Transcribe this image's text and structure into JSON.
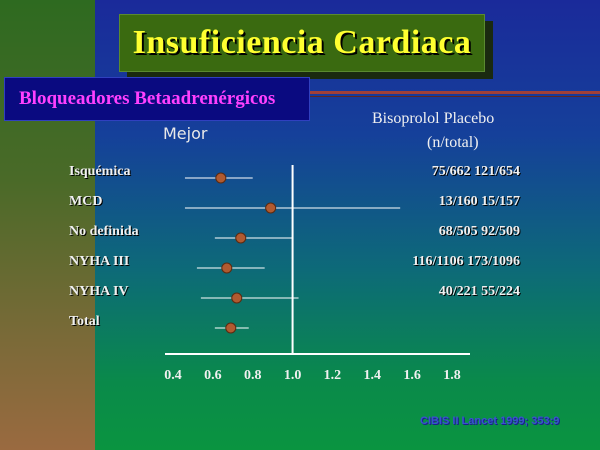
{
  "slide": {
    "title": "Insuficiencia  Cardiaca",
    "subtitle": "Bloqueadores  Betaadrenérgicos",
    "column_header_line1": "Bisoprolol   Placebo",
    "column_header_line2": "(n/total)",
    "better_label": "Mejor",
    "citation": "CIBIS II Lancet 1999; 353:9",
    "colors": {
      "title_text": "#ffff30",
      "subtitle_text": "#ff40ff",
      "marker": "#b05a30",
      "ci_line": "#ffffff"
    }
  },
  "chart_data": {
    "type": "forest",
    "title": "",
    "xlabel": "",
    "xlim": [
      0.4,
      1.8
    ],
    "x_ticks": [
      "0.4",
      "0.6",
      "0.8",
      "1.0",
      "1.2",
      "1.4",
      "1.6",
      "1.8"
    ],
    "x_tick_values": [
      0.4,
      0.6,
      0.8,
      1.0,
      1.2,
      1.4,
      1.6,
      1.8
    ],
    "reference_line": 1.0,
    "rows": [
      {
        "label": "Isquémica",
        "estimate": 0.64,
        "ci_low": 0.46,
        "ci_high": 0.8,
        "values": "75/662   121/654"
      },
      {
        "label": "MCD",
        "estimate": 0.89,
        "ci_low": 0.46,
        "ci_high": 1.54,
        "values": "13/160   15/157"
      },
      {
        "label": "No definida",
        "estimate": 0.74,
        "ci_low": 0.61,
        "ci_high": 1.0,
        "values": "68/505   92/509"
      },
      {
        "label": "NYHA III",
        "estimate": 0.67,
        "ci_low": 0.52,
        "ci_high": 0.86,
        "values": "116/1106  173/1096"
      },
      {
        "label": "NYHA IV",
        "estimate": 0.72,
        "ci_low": 0.54,
        "ci_high": 1.03,
        "values": "40/221   55/224"
      },
      {
        "label": "Total",
        "estimate": 0.69,
        "ci_low": 0.61,
        "ci_high": 0.78,
        "values": ""
      }
    ]
  }
}
